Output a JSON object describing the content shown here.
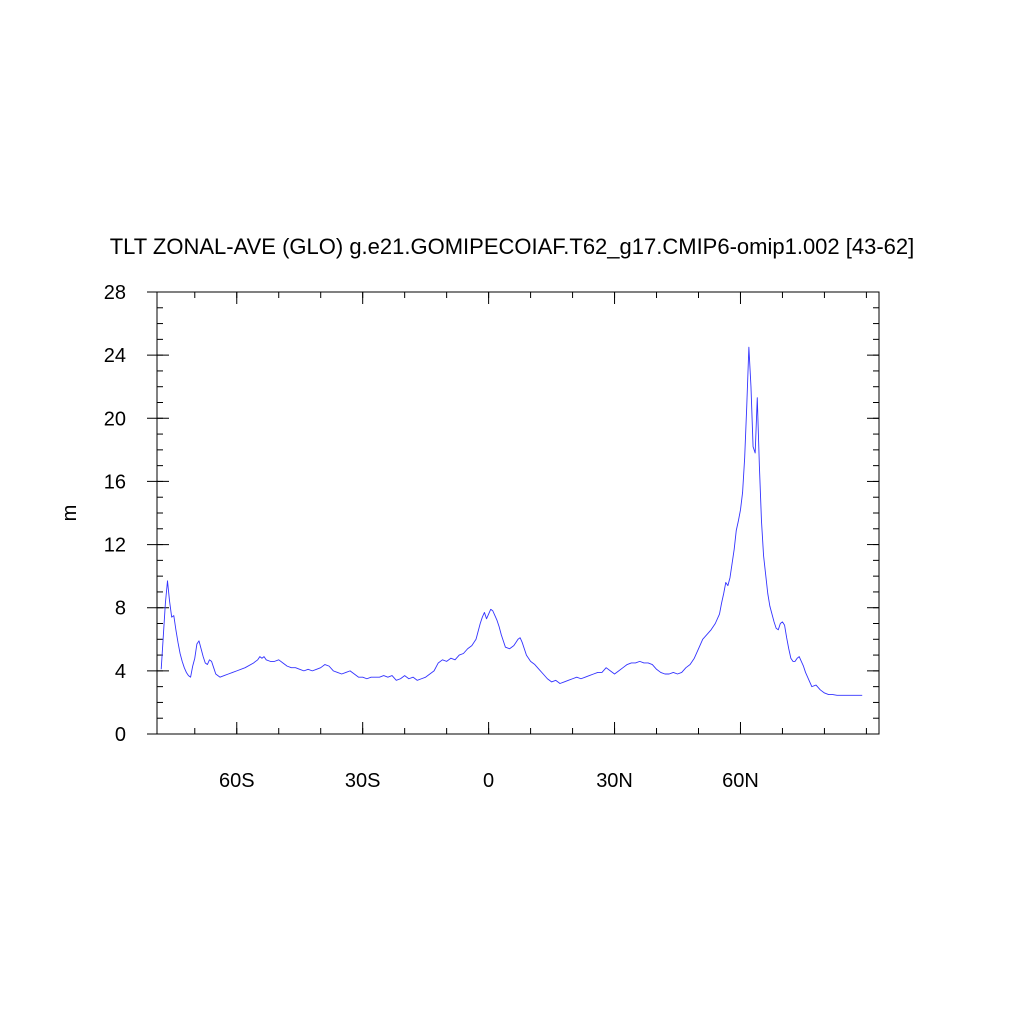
{
  "chart_data": {
    "type": "line",
    "title": "TLT ZONAL-AVE (GLO) g.e21.GOMIPECOIAF.T62_g17.CMIP6-omip1.002 [43-62]",
    "xlabel": "",
    "ylabel": "m",
    "xlim": [
      -79,
      93
    ],
    "ylim": [
      0,
      28
    ],
    "x_ticks": [
      {
        "value": -60,
        "label": "60S"
      },
      {
        "value": -30,
        "label": "30S"
      },
      {
        "value": 0,
        "label": "0"
      },
      {
        "value": 30,
        "label": "30N"
      },
      {
        "value": 60,
        "label": "60N"
      }
    ],
    "y_ticks": [
      {
        "value": 0,
        "label": "0"
      },
      {
        "value": 4,
        "label": "4"
      },
      {
        "value": 8,
        "label": "8"
      },
      {
        "value": 12,
        "label": "12"
      },
      {
        "value": 16,
        "label": "16"
      },
      {
        "value": 20,
        "label": "20"
      },
      {
        "value": 24,
        "label": "24"
      },
      {
        "value": 28,
        "label": "28"
      }
    ],
    "line_color": "#3333ff",
    "grid": false,
    "series": [
      {
        "x": [
          -78,
          -77,
          -76.5,
          -76,
          -75.5,
          -75,
          -74.5,
          -74,
          -73.5,
          -73,
          -72.5,
          -72,
          -71.5,
          -71,
          -70.5,
          -70,
          -69.5,
          -69,
          -68.5,
          -68,
          -67.5,
          -67,
          -66.5,
          -66,
          -65.5,
          -65,
          -64.5,
          -64,
          -63,
          -62,
          -61,
          -60,
          -58,
          -56,
          -55,
          -54.5,
          -54,
          -53.5,
          -53,
          -52,
          -51,
          -50,
          -49,
          -48,
          -47,
          -46,
          -45,
          -44,
          -43,
          -42,
          -41,
          -40,
          -39,
          -38,
          -37,
          -36,
          -35,
          -34,
          -33,
          -32,
          -31,
          -30,
          -29,
          -28,
          -27,
          -26,
          -25,
          -24,
          -23,
          -22,
          -21,
          -20,
          -19,
          -18,
          -17,
          -16,
          -15,
          -14,
          -13,
          -12,
          -11,
          -10,
          -9,
          -8,
          -7,
          -6,
          -5,
          -4,
          -3,
          -2.5,
          -2,
          -1.5,
          -1,
          -0.5,
          0,
          0.5,
          1,
          1.5,
          2,
          2.5,
          3,
          3.5,
          4,
          5,
          6,
          6.5,
          7,
          7.5,
          8,
          8.5,
          9,
          10,
          11,
          12,
          13,
          14,
          15,
          16,
          17,
          18,
          19,
          20,
          21,
          22,
          23,
          24,
          25,
          26,
          27,
          28,
          29,
          30,
          31,
          32,
          33,
          34,
          35,
          36,
          37,
          38,
          39,
          40,
          41,
          42,
          43,
          44,
          45,
          46,
          47,
          48,
          49,
          50,
          51,
          52,
          53,
          54,
          55,
          55.5,
          56,
          56.5,
          57,
          57.5,
          58,
          58.5,
          59,
          59.5,
          60,
          60.5,
          61,
          61.5,
          62,
          62.5,
          63,
          63.5,
          64,
          64.5,
          65,
          65.5,
          66,
          66.5,
          67,
          67.5,
          68,
          68.5,
          69,
          69.5,
          70,
          70.5,
          71,
          71.5,
          72,
          72.5,
          73,
          73.5,
          74,
          74.5,
          75,
          75.5,
          76,
          76.5,
          77,
          78,
          79,
          80,
          81,
          82,
          83,
          84,
          85,
          86,
          87,
          88,
          89
        ],
        "y": [
          4.1,
          8.3,
          9.7,
          8.4,
          7.4,
          7.5,
          6.6,
          5.8,
          5.1,
          4.6,
          4.2,
          3.9,
          3.7,
          3.6,
          4.3,
          4.8,
          5.7,
          5.9,
          5.4,
          4.9,
          4.5,
          4.4,
          4.7,
          4.6,
          4.2,
          3.8,
          3.7,
          3.6,
          3.7,
          3.8,
          3.9,
          4.0,
          4.2,
          4.5,
          4.7,
          4.9,
          4.8,
          4.9,
          4.7,
          4.6,
          4.6,
          4.7,
          4.5,
          4.3,
          4.2,
          4.2,
          4.1,
          4.0,
          4.1,
          4.0,
          4.1,
          4.2,
          4.4,
          4.3,
          4.0,
          3.9,
          3.8,
          3.9,
          4.0,
          3.8,
          3.6,
          3.6,
          3.5,
          3.6,
          3.6,
          3.6,
          3.7,
          3.6,
          3.7,
          3.4,
          3.5,
          3.7,
          3.5,
          3.6,
          3.4,
          3.5,
          3.6,
          3.8,
          4.0,
          4.5,
          4.7,
          4.6,
          4.8,
          4.7,
          5.0,
          5.1,
          5.4,
          5.6,
          6.0,
          6.5,
          7.0,
          7.4,
          7.7,
          7.3,
          7.6,
          7.9,
          7.8,
          7.5,
          7.2,
          6.8,
          6.3,
          5.9,
          5.5,
          5.4,
          5.6,
          5.8,
          6.0,
          6.1,
          5.8,
          5.4,
          5.0,
          4.6,
          4.4,
          4.1,
          3.8,
          3.5,
          3.3,
          3.4,
          3.2,
          3.3,
          3.4,
          3.5,
          3.6,
          3.5,
          3.6,
          3.7,
          3.8,
          3.9,
          3.9,
          4.2,
          4.0,
          3.8,
          4.0,
          4.2,
          4.4,
          4.5,
          4.5,
          4.6,
          4.5,
          4.5,
          4.4,
          4.1,
          3.9,
          3.8,
          3.8,
          3.9,
          3.8,
          3.9,
          4.2,
          4.4,
          4.8,
          5.4,
          6.0,
          6.3,
          6.6,
          7.0,
          7.6,
          8.3,
          8.9,
          9.6,
          9.4,
          9.9,
          10.8,
          11.7,
          12.9,
          13.5,
          14.2,
          15.3,
          17.5,
          20.8,
          24.5,
          22.0,
          18.2,
          17.8,
          21.3,
          17.0,
          13.5,
          11.3,
          10.1,
          8.9,
          8.1,
          7.6,
          7.1,
          6.7,
          6.6,
          7.0,
          7.1,
          6.9,
          6.1,
          5.4,
          4.8,
          4.6,
          4.6,
          4.8,
          4.9,
          4.6,
          4.3,
          3.9,
          3.6,
          3.3,
          3.0,
          3.1,
          2.8,
          2.6,
          2.5,
          2.5,
          2.45,
          2.45,
          2.45,
          2.45,
          2.45,
          2.45,
          2.45
        ]
      }
    ]
  }
}
